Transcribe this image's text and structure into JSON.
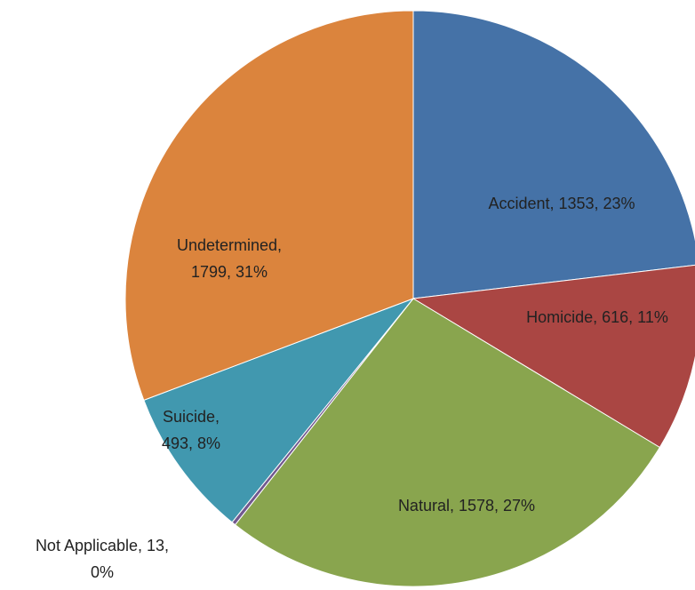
{
  "chart_data": {
    "type": "pie",
    "values": [
      1353,
      616,
      1578,
      13,
      493,
      1799
    ],
    "value_labels": [
      "Accident, 1353, 23%",
      "Homicide, 616, 11%",
      "Natural, 1578, 27%",
      "Not Applicable, 13,\n0%",
      "Suicide,\n493, 8%",
      "Undetermined,\n1799, 31%"
    ],
    "colors": [
      "#4572a7",
      "#aa4643",
      "#89a54e",
      "#71588f",
      "#4198af",
      "#db843d"
    ]
  }
}
